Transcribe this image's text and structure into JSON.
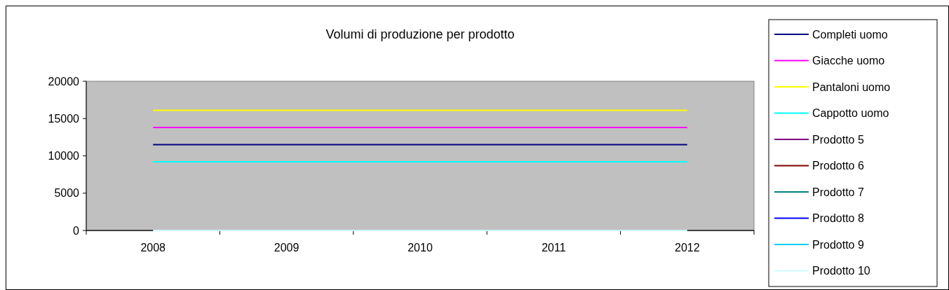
{
  "chart_data": {
    "type": "line",
    "title": "Volumi di produzione per prodotto",
    "categories": [
      "2008",
      "2009",
      "2010",
      "2011",
      "2012"
    ],
    "ylim": [
      0,
      20000
    ],
    "yticks": [
      0,
      5000,
      10000,
      15000,
      20000
    ],
    "grid": false,
    "legend": "right",
    "marker": "none",
    "series": [
      {
        "name": "Completi uomo",
        "color": "#000080",
        "values": [
          11500,
          11500,
          11500,
          11500,
          11500
        ]
      },
      {
        "name": "Giacche uomo",
        "color": "#ff00ff",
        "values": [
          13800,
          13800,
          13800,
          13800,
          13800
        ]
      },
      {
        "name": "Pantaloni uomo",
        "color": "#ffff00",
        "values": [
          16100,
          16100,
          16100,
          16100,
          16100
        ]
      },
      {
        "name": "Cappotto uomo",
        "color": "#00ffff",
        "values": [
          9200,
          9200,
          9200,
          9200,
          9200
        ]
      },
      {
        "name": "Prodotto 5",
        "color": "#800080",
        "values": [
          null,
          null,
          null,
          null,
          null
        ]
      },
      {
        "name": "Prodotto 6",
        "color": "#800000",
        "values": [
          null,
          null,
          null,
          null,
          null
        ]
      },
      {
        "name": "Prodotto 7",
        "color": "#008080",
        "values": [
          null,
          null,
          null,
          null,
          null
        ]
      },
      {
        "name": "Prodotto 8",
        "color": "#0000ff",
        "values": [
          null,
          null,
          null,
          null,
          null
        ]
      },
      {
        "name": "Prodotto 9",
        "color": "#00ccff",
        "values": [
          null,
          null,
          null,
          null,
          null
        ]
      },
      {
        "name": "Prodotto 10",
        "color": "#ccffff",
        "values": [
          0,
          0,
          0,
          0,
          0
        ]
      }
    ]
  }
}
